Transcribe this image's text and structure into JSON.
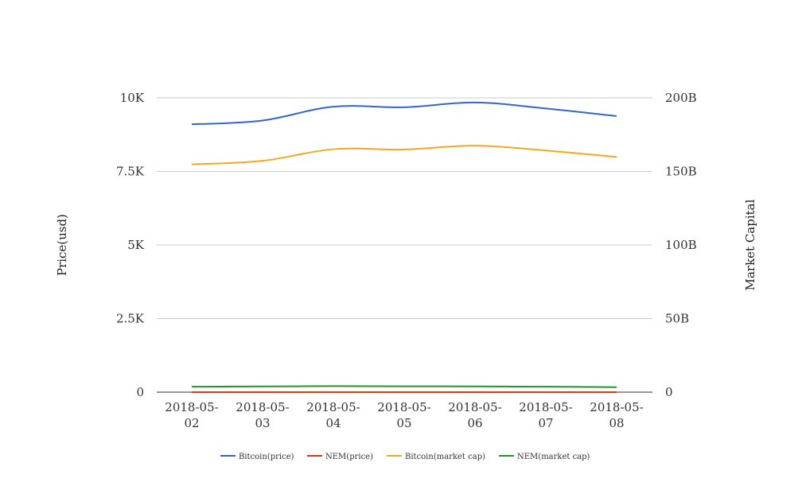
{
  "chart_data": {
    "type": "line",
    "title": "",
    "x": [
      "2018-05-02",
      "2018-05-03",
      "2018-05-04",
      "2018-05-05",
      "2018-05-06",
      "2018-05-07",
      "2018-05-08"
    ],
    "x_tick_labels": [
      [
        "2018-05-",
        "02"
      ],
      [
        "2018-05-",
        "03"
      ],
      [
        "2018-05-",
        "04"
      ],
      [
        "2018-05-",
        "05"
      ],
      [
        "2018-05-",
        "06"
      ],
      [
        "2018-05-",
        "07"
      ],
      [
        "2018-05-",
        "08"
      ]
    ],
    "y_left": {
      "label": "Price(usd)",
      "ylim": [
        0,
        10000
      ],
      "ticks": [
        0,
        2500,
        5000,
        7500,
        10000
      ],
      "tick_labels": [
        "0",
        "2.5K",
        "5K",
        "7.5K",
        "10K"
      ]
    },
    "y_right": {
      "label": "Market Capital",
      "ylim": [
        0,
        200000000000
      ],
      "ticks": [
        0,
        50000000000,
        100000000000,
        150000000000,
        200000000000
      ],
      "tick_labels": [
        "0",
        "50B",
        "100B",
        "150B",
        "200B"
      ]
    },
    "grid": true,
    "legend_position": "bottom",
    "series": [
      {
        "name": "Bitcoin(price)",
        "axis": "left",
        "color": "#3366cc",
        "values": [
          9100,
          9230,
          9700,
          9680,
          9840,
          9640,
          9380
        ]
      },
      {
        "name": "NEM(price)",
        "axis": "left",
        "color": "#dc3912",
        "values": [
          0.47,
          0.49,
          0.52,
          0.51,
          0.5,
          0.48,
          0.44
        ]
      },
      {
        "name": "Bitcoin(market cap)",
        "axis": "right",
        "color": "#f5a623",
        "values": [
          154800000000,
          157200000000,
          165100000000,
          164900000000,
          167500000000,
          164200000000,
          159800000000
        ]
      },
      {
        "name": "NEM(market cap)",
        "axis": "right",
        "color": "#22962b",
        "values": [
          3700000000,
          3900000000,
          4100000000,
          4000000000,
          3900000000,
          3700000000,
          3400000000
        ]
      }
    ]
  }
}
